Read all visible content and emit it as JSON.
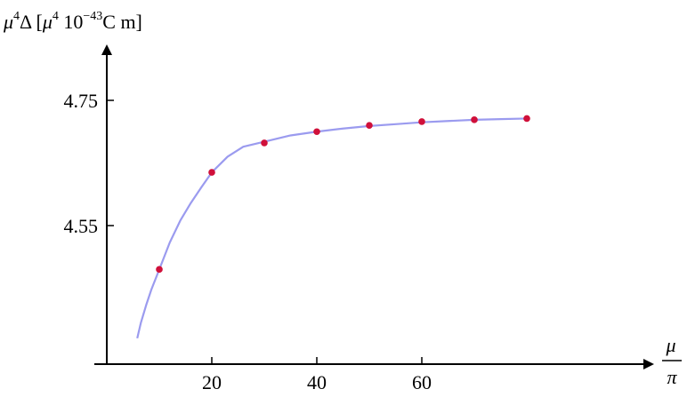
{
  "chart_data": {
    "type": "scatter",
    "title": "",
    "ylabel": {
      "mu": "μ",
      "exp1": "4",
      "delta": "Δ [",
      "mu2": "μ",
      "exp2": "4",
      "ten": " 10",
      "exp3": "−43",
      "units": "C m]"
    },
    "xlabel": {
      "numerator": "μ",
      "denominator": "π"
    },
    "xlim": [
      0,
      80
    ],
    "ylim": [
      4.37,
      4.82
    ],
    "x_ticks": [
      20,
      40,
      60
    ],
    "x_tick_labels": [
      "20",
      "40",
      "60"
    ],
    "y_ticks": [
      4.55,
      4.75
    ],
    "y_tick_labels": [
      "4.55",
      "4.75"
    ],
    "grid": false,
    "series": [
      {
        "type": "scatter",
        "color": "#d0103a",
        "x": [
          10,
          20,
          30,
          40,
          50,
          60,
          70,
          80
        ],
        "y": [
          4.48,
          4.635,
          4.682,
          4.7,
          4.71,
          4.716,
          4.719,
          4.721
        ]
      },
      {
        "type": "line",
        "color": "#9b9bef",
        "x": [
          5.8,
          6.5,
          7.5,
          8.5,
          10,
          12,
          14,
          16,
          18,
          20,
          23,
          26,
          30,
          35,
          40,
          45,
          50,
          55,
          60,
          65,
          70,
          75,
          80
        ],
        "y": [
          4.37,
          4.395,
          4.423,
          4.448,
          4.48,
          4.523,
          4.558,
          4.586,
          4.611,
          4.635,
          4.66,
          4.676,
          4.684,
          4.694,
          4.7,
          4.705,
          4.709,
          4.712,
          4.715,
          4.717,
          4.719,
          4.72,
          4.721
        ]
      }
    ]
  }
}
